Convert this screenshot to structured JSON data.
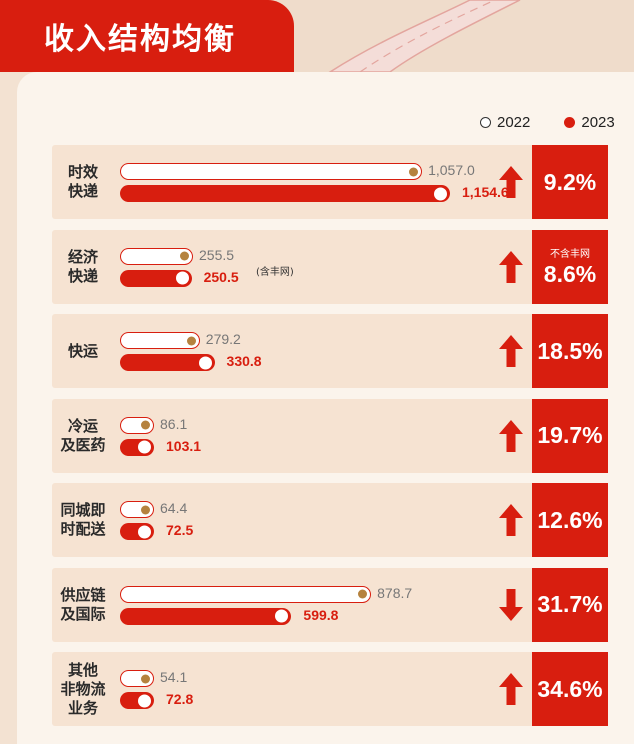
{
  "header": {
    "title": "收入结构均衡"
  },
  "legend": {
    "y2022": "2022",
    "y2023": "2023"
  },
  "colors": {
    "brand_red": "#d81e0f",
    "knob_2022": "#b5823e",
    "row_bg": "#f6e3d2"
  },
  "chart_data": {
    "type": "bar",
    "orientation": "horizontal",
    "categories": [
      "时效快递",
      "经济快递",
      "快运",
      "冷运及医药",
      "同城即时配送",
      "供应链及国际",
      "其他非物流业务"
    ],
    "series": [
      {
        "name": "2022",
        "values": [
          1057.0,
          255.5,
          279.2,
          86.1,
          64.4,
          878.7,
          54.1
        ]
      },
      {
        "name": "2023",
        "values": [
          1154.6,
          250.5,
          330.8,
          103.1,
          72.5,
          599.8,
          72.8
        ]
      }
    ],
    "growth": [
      {
        "direction": "up",
        "pct": "9.2%"
      },
      {
        "direction": "up",
        "pct": "8.6%",
        "note": "不含丰网"
      },
      {
        "direction": "up",
        "pct": "18.5%"
      },
      {
        "direction": "up",
        "pct": "19.7%"
      },
      {
        "direction": "up",
        "pct": "12.6%"
      },
      {
        "direction": "down",
        "pct": "31.7%"
      },
      {
        "direction": "up",
        "pct": "34.6%"
      }
    ],
    "annotations": [
      {
        "category": "经济快递",
        "text": "(含丰网)"
      }
    ],
    "legend_position": "top-right"
  },
  "rows": [
    {
      "label_lines": [
        "时效",
        "快递"
      ],
      "v22": "1,057.0",
      "v23": "1,154.6"
    },
    {
      "label_lines": [
        "经济",
        "快递"
      ],
      "v22": "255.5",
      "v23": "250.5"
    },
    {
      "label_lines": [
        "快运"
      ],
      "v22": "279.2",
      "v23": "330.8"
    },
    {
      "label_lines": [
        "冷运",
        "及医药"
      ],
      "v22": "86.1",
      "v23": "103.1"
    },
    {
      "label_lines": [
        "同城即",
        "时配送"
      ],
      "v22": "64.4",
      "v23": "72.5"
    },
    {
      "label_lines": [
        "供应链",
        "及国际"
      ],
      "v22": "878.7",
      "v23": "599.8"
    },
    {
      "label_lines": [
        "其他",
        "非物流",
        "业务"
      ],
      "v22": "54.1",
      "v23": "72.8"
    }
  ]
}
